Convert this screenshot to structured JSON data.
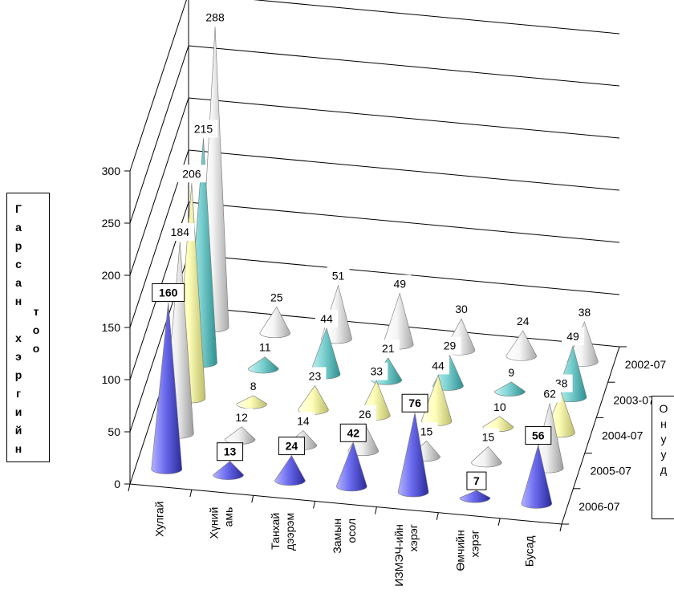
{
  "chart_data": {
    "type": "bar",
    "subtype": "3d-cone",
    "categories": [
      "Хулгай",
      "Хүний амь",
      "Танхай дээрэм",
      "Замын осол",
      "ИЗМЭЧ-ийн хэрэг",
      "Өмчийн хэрэг",
      "Бусад"
    ],
    "series": [
      {
        "name": "2002-07",
        "color": "#ffffff",
        "values": [
          288,
          25,
          51,
          49,
          30,
          24,
          38
        ]
      },
      {
        "name": "2003-07",
        "color": "#66cccc",
        "values": [
          215,
          11,
          44,
          21,
          29,
          9,
          49
        ]
      },
      {
        "name": "2004-07",
        "color": "#ffffb0",
        "values": [
          206,
          8,
          23,
          33,
          44,
          10,
          38
        ]
      },
      {
        "name": "2005-07",
        "color": "#ffffff",
        "values": [
          184,
          12,
          14,
          26,
          15,
          15,
          62
        ]
      },
      {
        "name": "2006-07",
        "color": "#6666ee",
        "values": [
          160,
          13,
          24,
          42,
          76,
          7,
          56
        ]
      }
    ],
    "ylabel": "Гарсан хэргийн тоо",
    "zlabel": "Онууд",
    "ylim": [
      0,
      300
    ],
    "yticks": [
      0,
      50,
      100,
      150,
      200,
      250,
      300
    ],
    "grid": true
  },
  "titles": {
    "y_col1": [
      "Г",
      "а",
      "р",
      "с",
      "а",
      "н",
      "",
      "х",
      "э",
      "р",
      "г",
      "и",
      "й",
      "н"
    ],
    "y_col2": [
      "т",
      "о",
      "о"
    ],
    "z_letters": [
      "О",
      "н",
      "у",
      "у",
      "д"
    ]
  }
}
